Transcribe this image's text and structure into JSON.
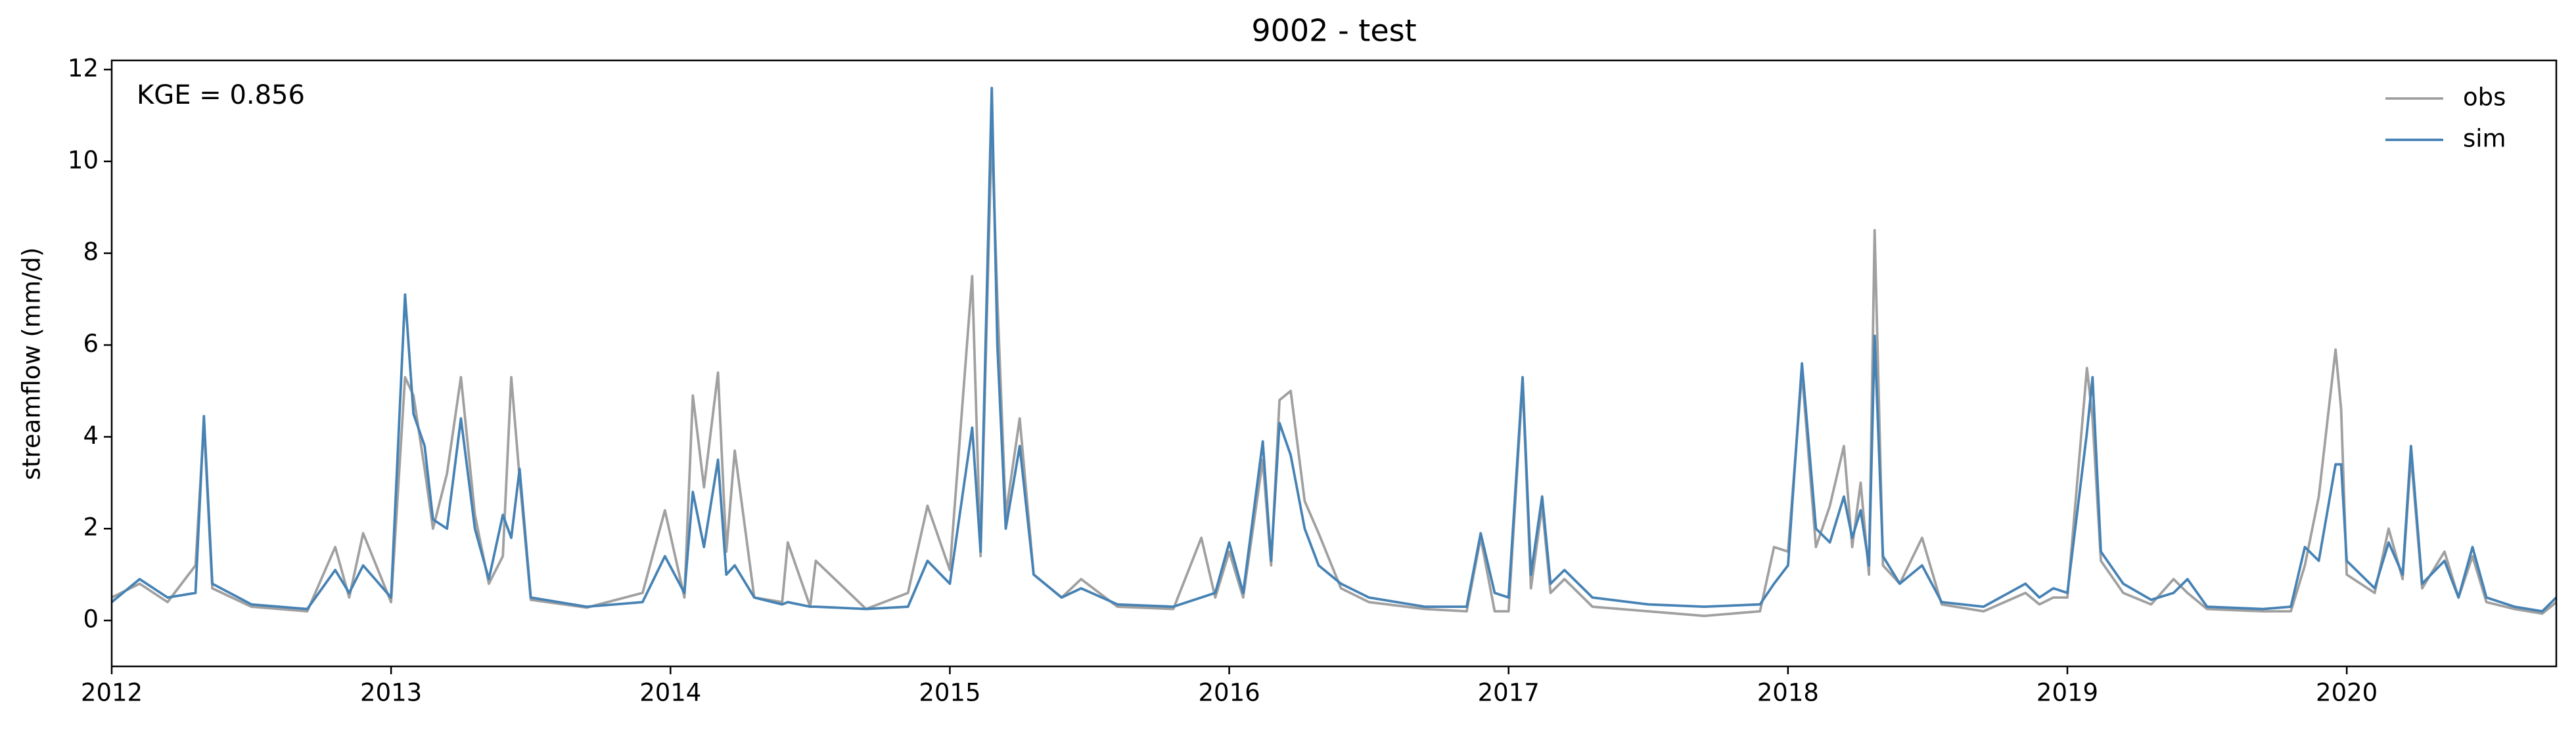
{
  "chart_data": {
    "type": "line",
    "title": "9002 - test",
    "ylabel": "streamflow (mm/d)",
    "annotation": "KGE = 0.856",
    "x": [
      2012.0,
      2012.1,
      2012.2,
      2012.3,
      2012.33,
      2012.36,
      2012.5,
      2012.7,
      2012.8,
      2012.85,
      2012.9,
      2013.0,
      2013.05,
      2013.08,
      2013.12,
      2013.15,
      2013.2,
      2013.25,
      2013.3,
      2013.35,
      2013.4,
      2013.43,
      2013.46,
      2013.5,
      2013.7,
      2013.9,
      2013.98,
      2014.05,
      2014.08,
      2014.12,
      2014.17,
      2014.2,
      2014.23,
      2014.3,
      2014.4,
      2014.42,
      2014.5,
      2014.52,
      2014.7,
      2014.85,
      2014.92,
      2015.0,
      2015.08,
      2015.11,
      2015.15,
      2015.17,
      2015.2,
      2015.25,
      2015.3,
      2015.4,
      2015.47,
      2015.6,
      2015.8,
      2015.9,
      2015.95,
      2016.0,
      2016.05,
      2016.12,
      2016.15,
      2016.18,
      2016.22,
      2016.27,
      2016.32,
      2016.4,
      2016.5,
      2016.7,
      2016.85,
      2016.9,
      2016.95,
      2017.0,
      2017.05,
      2017.08,
      2017.12,
      2017.15,
      2017.2,
      2017.3,
      2017.5,
      2017.7,
      2017.9,
      2017.95,
      2018.0,
      2018.05,
      2018.1,
      2018.15,
      2018.2,
      2018.23,
      2018.26,
      2018.29,
      2018.31,
      2018.34,
      2018.4,
      2018.48,
      2018.55,
      2018.7,
      2018.85,
      2018.9,
      2018.95,
      2019.0,
      2019.07,
      2019.09,
      2019.12,
      2019.2,
      2019.3,
      2019.38,
      2019.43,
      2019.5,
      2019.7,
      2019.8,
      2019.85,
      2019.9,
      2019.96,
      2019.98,
      2020.0,
      2020.1,
      2020.15,
      2020.2,
      2020.23,
      2020.27,
      2020.35,
      2020.4,
      2020.45,
      2020.5,
      2020.6,
      2020.7,
      2020.75
    ],
    "series": [
      {
        "name": "obs",
        "color": "#a0a0a0",
        "values": [
          0.5,
          0.8,
          0.4,
          1.2,
          4.3,
          0.7,
          0.3,
          0.2,
          1.6,
          0.5,
          1.9,
          0.4,
          5.3,
          4.9,
          3.3,
          2.0,
          3.2,
          5.3,
          2.3,
          0.8,
          1.4,
          5.3,
          3.1,
          0.45,
          0.28,
          0.6,
          2.4,
          0.5,
          4.9,
          2.9,
          5.4,
          1.5,
          3.7,
          0.5,
          0.4,
          1.7,
          0.3,
          1.3,
          0.25,
          0.6,
          2.5,
          1.1,
          7.5,
          1.4,
          10.7,
          7.0,
          2.3,
          4.4,
          1.0,
          0.5,
          0.9,
          0.3,
          0.25,
          1.8,
          0.5,
          1.5,
          0.5,
          3.5,
          1.2,
          4.8,
          5.0,
          2.6,
          1.9,
          0.7,
          0.4,
          0.25,
          0.2,
          1.8,
          0.2,
          0.2,
          5.2,
          0.7,
          2.5,
          0.6,
          0.9,
          0.3,
          0.2,
          0.1,
          0.2,
          1.6,
          1.5,
          5.4,
          1.6,
          2.5,
          3.8,
          1.6,
          3.0,
          1.0,
          8.5,
          1.2,
          0.8,
          1.8,
          0.35,
          0.2,
          0.6,
          0.35,
          0.5,
          0.5,
          5.5,
          4.4,
          1.3,
          0.6,
          0.35,
          0.9,
          0.6,
          0.25,
          0.2,
          0.2,
          1.2,
          2.7,
          5.9,
          4.6,
          1.0,
          0.6,
          2.0,
          0.9,
          3.6,
          0.7,
          1.5,
          0.5,
          1.4,
          0.4,
          0.25,
          0.15,
          0.4
        ]
      },
      {
        "name": "sim",
        "color": "#4682b4",
        "values": [
          0.4,
          0.9,
          0.5,
          0.6,
          4.45,
          0.8,
          0.35,
          0.25,
          1.1,
          0.6,
          1.2,
          0.5,
          7.1,
          4.5,
          3.8,
          2.2,
          2.0,
          4.4,
          2.0,
          0.9,
          2.3,
          1.8,
          3.3,
          0.5,
          0.3,
          0.4,
          1.4,
          0.6,
          2.8,
          1.6,
          3.5,
          1.0,
          1.2,
          0.5,
          0.35,
          0.4,
          0.3,
          0.3,
          0.25,
          0.3,
          1.3,
          0.8,
          4.2,
          1.5,
          11.6,
          6.0,
          2.0,
          3.8,
          1.0,
          0.5,
          0.7,
          0.35,
          0.3,
          0.5,
          0.6,
          1.7,
          0.6,
          3.9,
          1.3,
          4.3,
          3.6,
          2.0,
          1.2,
          0.8,
          0.5,
          0.3,
          0.3,
          1.9,
          0.6,
          0.5,
          5.3,
          1.0,
          2.7,
          0.8,
          1.1,
          0.5,
          0.35,
          0.3,
          0.35,
          0.8,
          1.2,
          5.6,
          2.0,
          1.7,
          2.7,
          1.8,
          2.4,
          1.2,
          6.2,
          1.4,
          0.8,
          1.2,
          0.4,
          0.3,
          0.8,
          0.5,
          0.7,
          0.6,
          4.1,
          5.3,
          1.5,
          0.8,
          0.45,
          0.6,
          0.9,
          0.3,
          0.25,
          0.3,
          1.6,
          1.3,
          3.4,
          3.4,
          1.3,
          0.7,
          1.7,
          1.0,
          3.8,
          0.8,
          1.3,
          0.5,
          1.6,
          0.5,
          0.3,
          0.2,
          0.5
        ]
      }
    ],
    "xlim": [
      2012,
      2020.75
    ],
    "ylim": [
      -1,
      12.2
    ],
    "xticks": [
      2012,
      2013,
      2014,
      2015,
      2016,
      2017,
      2018,
      2019,
      2020
    ],
    "yticks": [
      0,
      2,
      4,
      6,
      8,
      10,
      12
    ],
    "legend": "upper right",
    "grid": false
  }
}
